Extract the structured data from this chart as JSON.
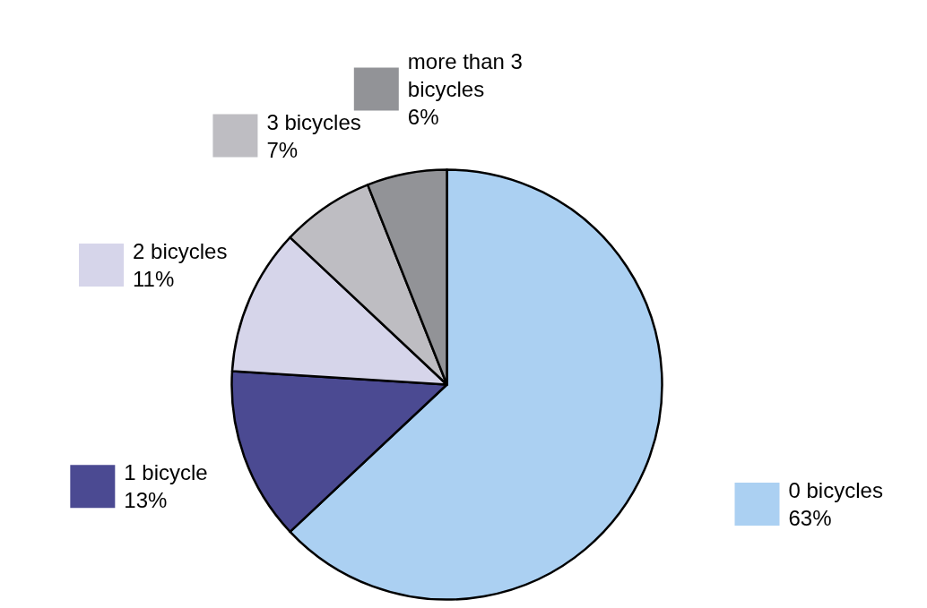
{
  "chart_data": {
    "type": "pie",
    "categories": [
      "0 bicycles",
      "1 bicycle",
      "2 bicycles",
      "3 bicycles",
      "more than 3 bicycles"
    ],
    "values": [
      63,
      13,
      11,
      7,
      6
    ],
    "value_labels": [
      "63%",
      "13%",
      "11%",
      "7%",
      "6%"
    ],
    "colors": [
      "#abd0f2",
      "#4b4a92",
      "#d6d5ea",
      "#bebdc2",
      "#929397"
    ],
    "legend": "top right"
  }
}
